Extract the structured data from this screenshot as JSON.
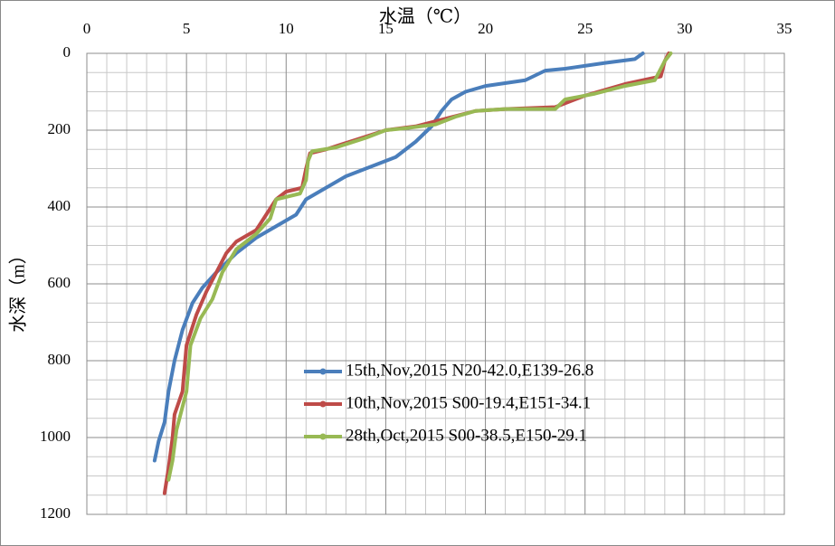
{
  "chart_data": {
    "type": "line",
    "x_label": "水温（℃）",
    "y_label": "水深（m）",
    "xlim": [
      0,
      35
    ],
    "xticks": [
      0,
      5,
      10,
      15,
      20,
      25,
      30,
      35
    ],
    "ylim": [
      0,
      1200
    ],
    "yticks": [
      0,
      200,
      400,
      600,
      800,
      1000,
      1200
    ],
    "y_inverted": true,
    "x_axis_position": "top",
    "grid": true,
    "minor_grid": true,
    "legend": "lower right",
    "series": [
      {
        "name": "15th,Nov,2015 N20-42.0,E139-26.8",
        "color": "#4a7ebb",
        "x": [
          27.9,
          27.5,
          26,
          24,
          23,
          22,
          20,
          19,
          18.3,
          17.8,
          17.3,
          16.5,
          15.5,
          14,
          13,
          12,
          11,
          10.5,
          9.5,
          8.5,
          7.5,
          6.5,
          5.8,
          5.3,
          4.8,
          4.4,
          4.1,
          3.9,
          3.6,
          3.4
        ],
        "values": [
          0,
          15,
          25,
          40,
          45,
          70,
          85,
          100,
          120,
          150,
          190,
          230,
          270,
          300,
          320,
          350,
          380,
          420,
          450,
          480,
          520,
          570,
          610,
          650,
          720,
          800,
          880,
          960,
          1010,
          1060
        ]
      },
      {
        "name": "10th,Nov,2015 S00-19.4,E151-34.1",
        "color": "#be4b48",
        "x": [
          29.2,
          29,
          28.8,
          27,
          25,
          23.5,
          21,
          19.5,
          18,
          16.5,
          15,
          13.5,
          12,
          11.2,
          11,
          10.8,
          10,
          9.5,
          9,
          8.5,
          7.5,
          7,
          6.5,
          6,
          5.5,
          5,
          4.8,
          4.4,
          4.3,
          4.1,
          3.9
        ],
        "values": [
          0,
          20,
          60,
          80,
          110,
          140,
          145,
          150,
          170,
          190,
          200,
          225,
          250,
          260,
          300,
          350,
          360,
          380,
          420,
          460,
          490,
          520,
          570,
          620,
          680,
          760,
          880,
          940,
          1000,
          1080,
          1145
        ]
      },
      {
        "name": "28th,Oct,2015 S00-38.5,E150-29.1",
        "color": "#98b954",
        "x": [
          29.3,
          29,
          28.5,
          27,
          25.5,
          24,
          23.5,
          21,
          19.5,
          18.5,
          17.5,
          16,
          15,
          14,
          12.5,
          11.3,
          11.1,
          11,
          10.7,
          9.5,
          9.2,
          8.5,
          7.5,
          6.8,
          6.3,
          5.7,
          5.2,
          5,
          4.5,
          4.3,
          4.1
        ],
        "values": [
          0,
          20,
          70,
          85,
          105,
          120,
          145,
          145,
          150,
          165,
          185,
          195,
          200,
          220,
          245,
          255,
          280,
          330,
          365,
          380,
          430,
          470,
          510,
          570,
          640,
          690,
          760,
          880,
          980,
          1060,
          1110
        ]
      }
    ]
  }
}
